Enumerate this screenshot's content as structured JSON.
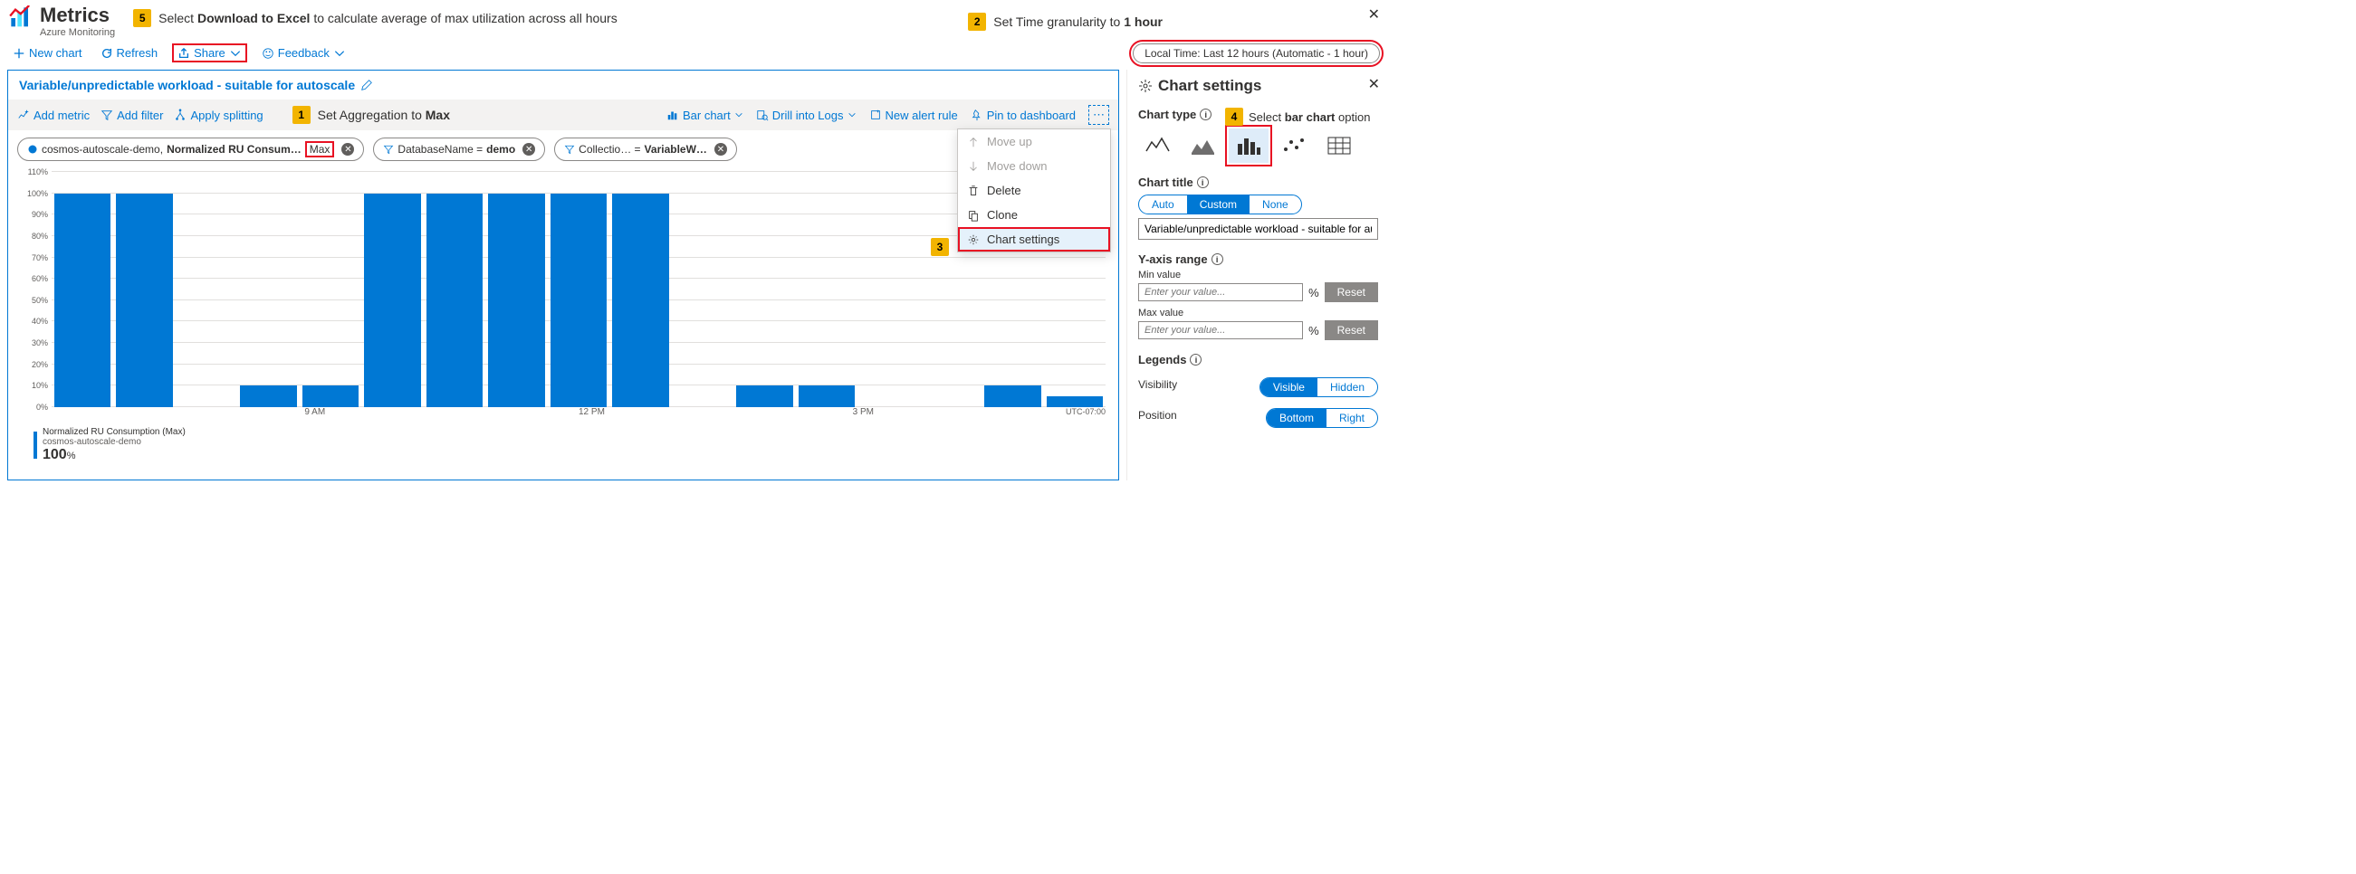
{
  "header": {
    "title": "Metrics",
    "subtitle": "Azure Monitoring"
  },
  "callouts": {
    "c1": {
      "num": "1",
      "text_a": "Set Aggregation to ",
      "text_b": "Max"
    },
    "c2": {
      "num": "2",
      "text_a": "Set Time granularity to ",
      "text_b": "1 hour"
    },
    "c3": {
      "num": "3"
    },
    "c4": {
      "num": "4",
      "text_a": "Select ",
      "text_b": "bar chart",
      "text_c": " option"
    },
    "c5": {
      "num": "5",
      "text_a": "Select ",
      "text_b": "Download to Excel",
      "text_c": " to calculate average of max utilization across all hours"
    }
  },
  "toolbar": {
    "new_chart": "New chart",
    "refresh": "Refresh",
    "share": "Share",
    "feedback": "Feedback",
    "time_range": "Local Time: Last 12 hours (Automatic - 1 hour)"
  },
  "chart": {
    "title": "Variable/unpredictable workload - suitable for autoscale",
    "add_metric": "Add metric",
    "add_filter": "Add filter",
    "apply_splitting": "Apply splitting",
    "bar_chart": "Bar chart",
    "drill_logs": "Drill into Logs",
    "new_alert": "New alert rule",
    "pin": "Pin to dashboard",
    "pill1_a": "cosmos-autoscale-demo, ",
    "pill1_b": "Normalized RU Consum…",
    "pill1_max": "Max",
    "pill2_a": "DatabaseName = ",
    "pill2_b": "demo",
    "pill3_a": "Collectio…   = ",
    "pill3_b": "VariableW…",
    "yticks": [
      "0%",
      "10%",
      "20%",
      "30%",
      "40%",
      "50%",
      "60%",
      "70%",
      "80%",
      "90%",
      "100%",
      "110%"
    ],
    "ylim": 110,
    "bars": [
      100,
      100,
      0,
      10,
      10,
      100,
      100,
      100,
      100,
      100,
      0,
      10,
      10,
      0,
      0,
      10,
      5
    ],
    "bar_color": "#0078d4",
    "grid_color": "#e1dfdd",
    "xticks": [
      {
        "label": "9 AM",
        "pos": 24
      },
      {
        "label": "12 PM",
        "pos": 50
      },
      {
        "label": "3 PM",
        "pos": 76
      }
    ],
    "utc": "UTC-07:00",
    "legend_title": "Normalized RU Consumption (Max)",
    "legend_sub": "cosmos-autoscale-demo",
    "legend_value": "100",
    "legend_unit": "%"
  },
  "context_menu": {
    "move_up": "Move up",
    "move_down": "Move down",
    "delete": "Delete",
    "clone": "Clone",
    "chart_settings": "Chart settings"
  },
  "settings": {
    "title": "Chart settings",
    "chart_type_label": "Chart type",
    "chart_title_label": "Chart title",
    "title_auto": "Auto",
    "title_custom": "Custom",
    "title_none": "None",
    "title_value": "Variable/unpredictable workload - suitable for aut",
    "yaxis_label": "Y-axis range",
    "min_label": "Min value",
    "max_label": "Max value",
    "placeholder": "Enter your value...",
    "pct": "%",
    "reset": "Reset",
    "legends_label": "Legends",
    "visibility": "Visibility",
    "visible": "Visible",
    "hidden": "Hidden",
    "position": "Position",
    "bottom": "Bottom",
    "right": "Right"
  }
}
